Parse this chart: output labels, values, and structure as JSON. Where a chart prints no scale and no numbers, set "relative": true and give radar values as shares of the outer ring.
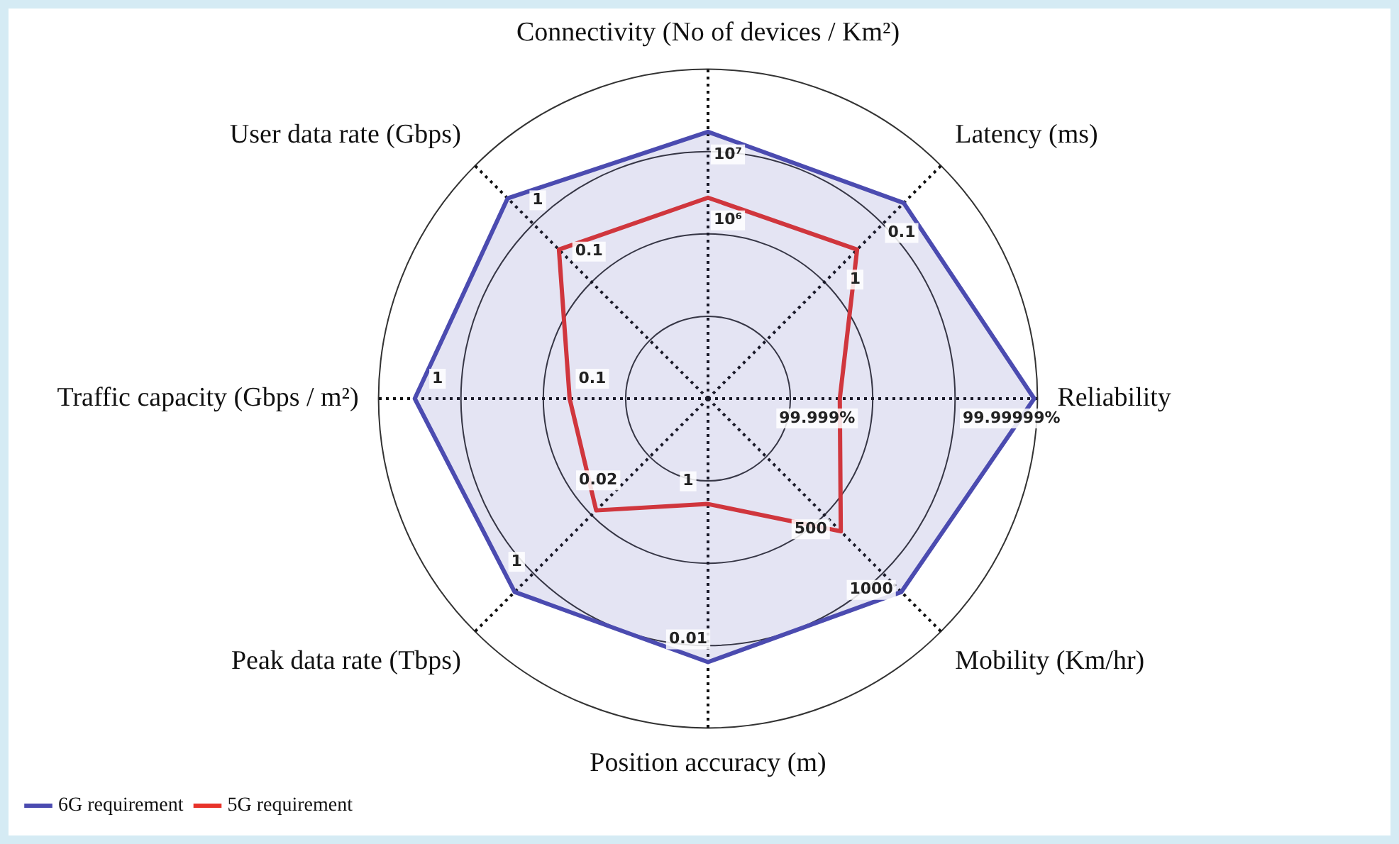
{
  "chart_data": {
    "type": "radar",
    "relative": true,
    "grid": true,
    "legend": "bottom left",
    "marker": "none",
    "categories": [
      "Connectivity (No of devices / Km²)",
      "Latency (ms)",
      "Reliability",
      "Mobility (Km/hr)",
      "Position accuracy (m)",
      "Peak data rate (Tbps)",
      "Traffic capacity (Gbps / m²)",
      "User data rate (Gbps)"
    ],
    "series": [
      {
        "name": "6G requirement",
        "type": "area",
        "color": "#4b4bb0",
        "values": [
          0.81,
          0.84,
          0.99,
          0.83,
          0.8,
          0.83,
          0.89,
          0.86
        ]
      },
      {
        "name": "5G requirement",
        "color": "#e8332a",
        "values": [
          0.61,
          0.64,
          0.4,
          0.57,
          0.32,
          0.48,
          0.42,
          0.64
        ]
      }
    ],
    "annotations": [
      {
        "text": "10⁷",
        "x": "Connectivity (No of devices / Km²)"
      },
      {
        "text": "10⁶",
        "x": "Connectivity (No of devices / Km²)"
      },
      {
        "text": "0.1",
        "x": "Latency (ms)"
      },
      {
        "text": "1",
        "x": "Latency (ms)"
      },
      {
        "text": "99.99999%",
        "x": "Reliability"
      },
      {
        "text": "99.999%",
        "x": "Reliability"
      },
      {
        "text": "1000",
        "x": "Mobility (Km/hr)"
      },
      {
        "text": "500",
        "x": "Mobility (Km/hr)"
      },
      {
        "text": "0.01",
        "x": "Position accuracy (m)"
      },
      {
        "text": "1",
        "x": "Position accuracy (m)"
      },
      {
        "text": "1",
        "x": "Peak data rate (Tbps)"
      },
      {
        "text": "0.02",
        "x": "Peak data rate (Tbps)"
      },
      {
        "text": "1",
        "x": "Traffic capacity (Gbps / m²)"
      },
      {
        "text": "0.1",
        "x": "Traffic capacity (Gbps / m²)"
      },
      {
        "text": "1",
        "x": "User data rate (Gbps)"
      },
      {
        "text": "0.1",
        "x": "User data rate (Gbps)"
      }
    ]
  }
}
